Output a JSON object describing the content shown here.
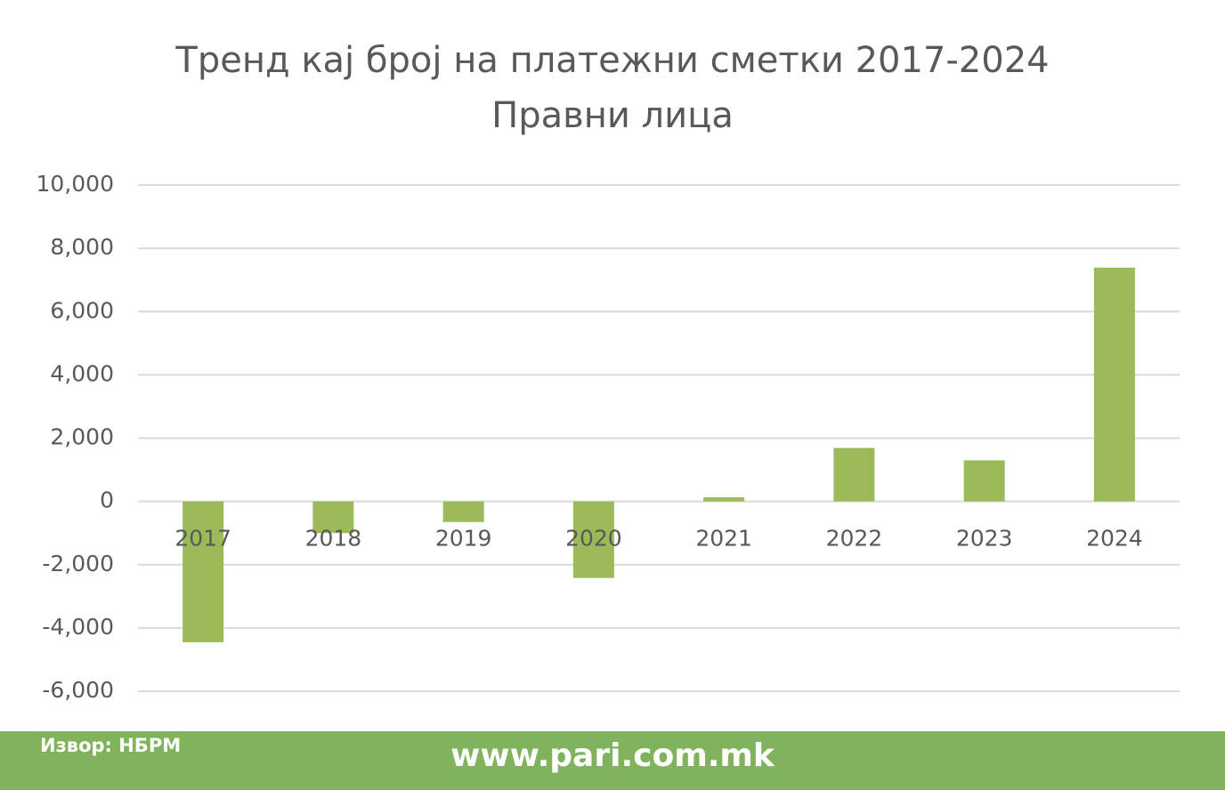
{
  "chart_data": {
    "type": "bar",
    "title": "Тренд кај број на платежни сметки 2017-2024",
    "subtitle": "Правни лица",
    "categories": [
      "2017",
      "2018",
      "2019",
      "2020",
      "2021",
      "2022",
      "2023",
      "2024"
    ],
    "values": [
      -4450,
      -1000,
      -650,
      -2420,
      130,
      1690,
      1300,
      7390
    ],
    "color": "#9bbb59",
    "ylim": [
      -6000,
      10000
    ],
    "yticks": [
      {
        "value": -6000,
        "label": "-6,000"
      },
      {
        "value": -4000,
        "label": "-4,000"
      },
      {
        "value": -2000,
        "label": "-2,000"
      },
      0,
      {
        "value": 2000,
        "label": "2,000"
      },
      {
        "value": 4000,
        "label": "4,000"
      },
      {
        "value": 6000,
        "label": "6,000"
      },
      {
        "value": 8000,
        "label": "8,000"
      },
      {
        "value": 10000,
        "label": "10,000"
      }
    ],
    "grid": true
  },
  "footer": {
    "source": "Извор: НБРМ",
    "website": "www.pari.com.mk"
  }
}
